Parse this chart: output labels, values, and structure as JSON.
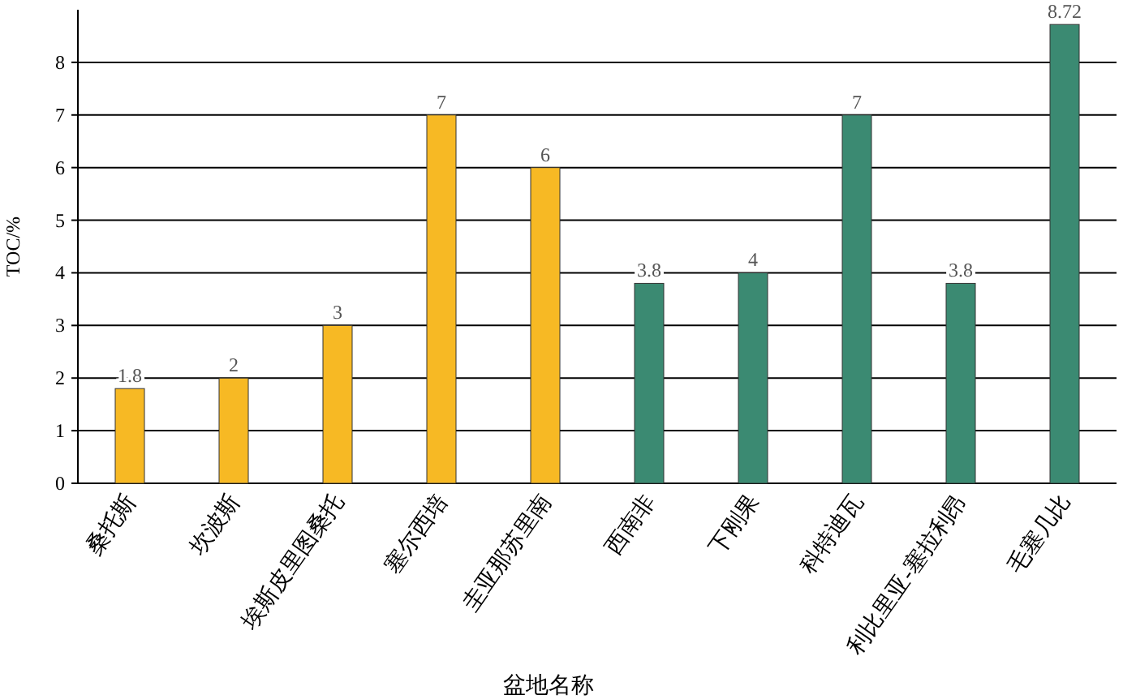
{
  "chart_data": {
    "type": "bar",
    "xlabel": "盆地名称",
    "ylabel": "TOC/%",
    "categories": [
      "桑托斯",
      "坎波斯",
      "埃斯皮里图桑托",
      "塞尔西培",
      "圭亚那苏里南",
      "西南非",
      "下刚果",
      "科特迪瓦",
      "利比里亚-塞拉利昂",
      "毛塞几比"
    ],
    "values": [
      1.8,
      2,
      3,
      7,
      6,
      3.8,
      4,
      7,
      3.8,
      8.72
    ],
    "colors": [
      "#f7b924",
      "#f7b924",
      "#f7b924",
      "#f7b924",
      "#f7b924",
      "#3b8a72",
      "#3b8a72",
      "#3b8a72",
      "#3b8a72",
      "#3b8a72"
    ],
    "ylim": [
      0,
      9
    ],
    "yticks": [
      0,
      1,
      2,
      3,
      4,
      5,
      6,
      7,
      8
    ],
    "grid": "y",
    "data_labels": true
  }
}
